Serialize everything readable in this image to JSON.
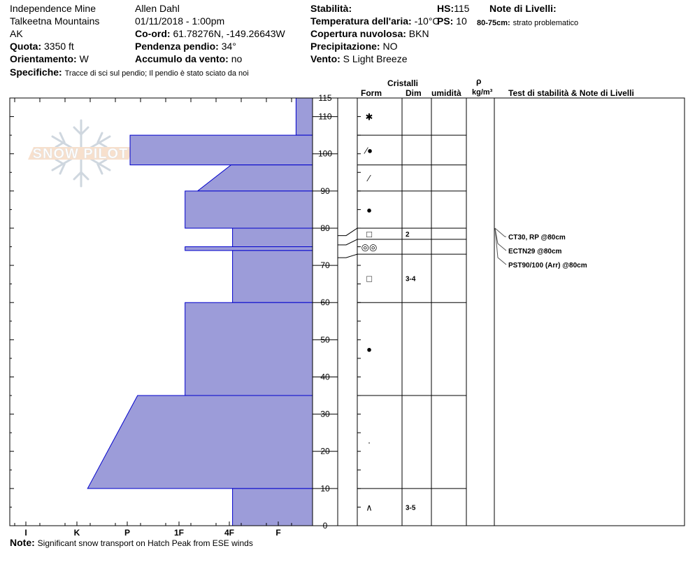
{
  "header": {
    "location": "Independence Mine",
    "range": "Talkeetna Mountains",
    "state": "AK",
    "elevation_label": "Quota:",
    "elevation": "3350 ft",
    "aspect_label": "Orientamento:",
    "aspect": "W",
    "observer": "Allen Dahl",
    "datetime": "01/11/2018 - 1:00pm",
    "coord_label": "Co-ord:",
    "coord": "61.78276N, -149.26643W",
    "slope_label": "Pendenza pendio:",
    "slope": "34°",
    "wind_loading_label": "Accumulo da vento:",
    "wind_loading": "no",
    "specifics_label": "Specifiche:",
    "specifics": "Tracce di sci sul pendio;  Il pendio è stato sciato da noi",
    "stability_label": "Stabilità:",
    "air_temp_label": "Temperatura dell'aria:",
    "air_temp": "-10°C",
    "cloud_label": "Copertura nuvolosa:",
    "cloud": "BKN",
    "precip_label": "Precipitazione:",
    "precip": "NO",
    "wind_label": "Vento:",
    "wind": "S Light Breeze",
    "hs_label": "HS:",
    "hs": "115",
    "ps_label": "PS:",
    "ps": "10",
    "layer_notes_label": "Note di Livelli:",
    "layer_note_depth": "80-75cm:",
    "layer_note_text": "strato problematico"
  },
  "columns": {
    "crystals": "Cristalli",
    "form": "Form",
    "size": "Dim",
    "moisture": "umidità",
    "rho": "ρ",
    "density_unit": "kg/m³",
    "tests": "Test di stabilità & Note di Livelli"
  },
  "footer": {
    "note_label": "Note:",
    "note": "Significant snow transport on Hatch Peak from ESE winds"
  },
  "watermark": "SNOW PILOT",
  "colors": {
    "layer_fill": "#9c9cd9",
    "layer_stroke": "#0000cc",
    "arrow": "#555555"
  },
  "chart_data": {
    "type": "snow-profile",
    "y_axis": {
      "min": 0,
      "max": 115,
      "ticks": [
        0,
        10,
        20,
        30,
        40,
        50,
        60,
        70,
        80,
        90,
        100,
        110,
        115
      ]
    },
    "hardness_scale": [
      "I",
      "K",
      "P",
      "1F",
      "4F",
      "F"
    ],
    "hardness_tick_labels": [
      "F",
      "4F",
      "1F",
      "P",
      "K",
      "I"
    ],
    "hardness_profile": [
      {
        "top": 115,
        "bottom": 105,
        "hardness_top": 0.33,
        "hardness_bottom": 0.33
      },
      {
        "top": 105,
        "bottom": 97,
        "hardness_top": 3.65,
        "hardness_bottom": 3.65
      },
      {
        "top": 97,
        "bottom": 90,
        "hardness_top": 1.63,
        "hardness_bottom": 2.3
      },
      {
        "top": 90,
        "bottom": 80,
        "hardness_top": 2.55,
        "hardness_bottom": 2.55
      },
      {
        "top": 80,
        "bottom": 75,
        "hardness_top": 1.6,
        "hardness_bottom": 1.6
      },
      {
        "top": 75,
        "bottom": 74,
        "hardness_top": 2.55,
        "hardness_bottom": 2.55
      },
      {
        "top": 74,
        "bottom": 60,
        "hardness_top": 1.6,
        "hardness_bottom": 1.6
      },
      {
        "top": 60,
        "bottom": 35,
        "hardness_top": 2.55,
        "hardness_bottom": 2.55
      },
      {
        "top": 35,
        "bottom": 10,
        "hardness_top": 3.5,
        "hardness_bottom": 4.5
      },
      {
        "top": 10,
        "bottom": 0,
        "hardness_top": 1.6,
        "hardness_bottom": 1.6
      }
    ],
    "layer_boundaries": [
      115,
      105,
      97,
      90,
      80,
      77,
      73,
      60,
      35,
      10,
      0
    ],
    "grain_layers": [
      {
        "top": 115,
        "bottom": 105,
        "form_symbol": "✱",
        "size": ""
      },
      {
        "top": 105,
        "bottom": 97,
        "form_symbol": "⁄●",
        "size": ""
      },
      {
        "top": 97,
        "bottom": 90,
        "form_symbol": "⁄",
        "size": ""
      },
      {
        "top": 90,
        "bottom": 80,
        "form_symbol": "●",
        "size": ""
      },
      {
        "top": 80,
        "bottom": 77,
        "form_symbol": "□",
        "size": "2"
      },
      {
        "top": 77,
        "bottom": 73,
        "form_symbol": "◎◎",
        "size": ""
      },
      {
        "top": 73,
        "bottom": 60,
        "form_symbol": "□",
        "size": "3-4"
      },
      {
        "top": 60,
        "bottom": 35,
        "form_symbol": "●",
        "size": ""
      },
      {
        "top": 35,
        "bottom": 10,
        "form_symbol": "·",
        "size": ""
      },
      {
        "top": 10,
        "bottom": 0,
        "form_symbol": "∧",
        "size": "3-5"
      }
    ],
    "stability_tests": [
      {
        "depth": 80,
        "label": "CT30, RP @80cm"
      },
      {
        "depth": 80,
        "label": "ECTN29 @80cm"
      },
      {
        "depth": 80,
        "label": "PST90/100 (Arr) @80cm"
      }
    ]
  }
}
